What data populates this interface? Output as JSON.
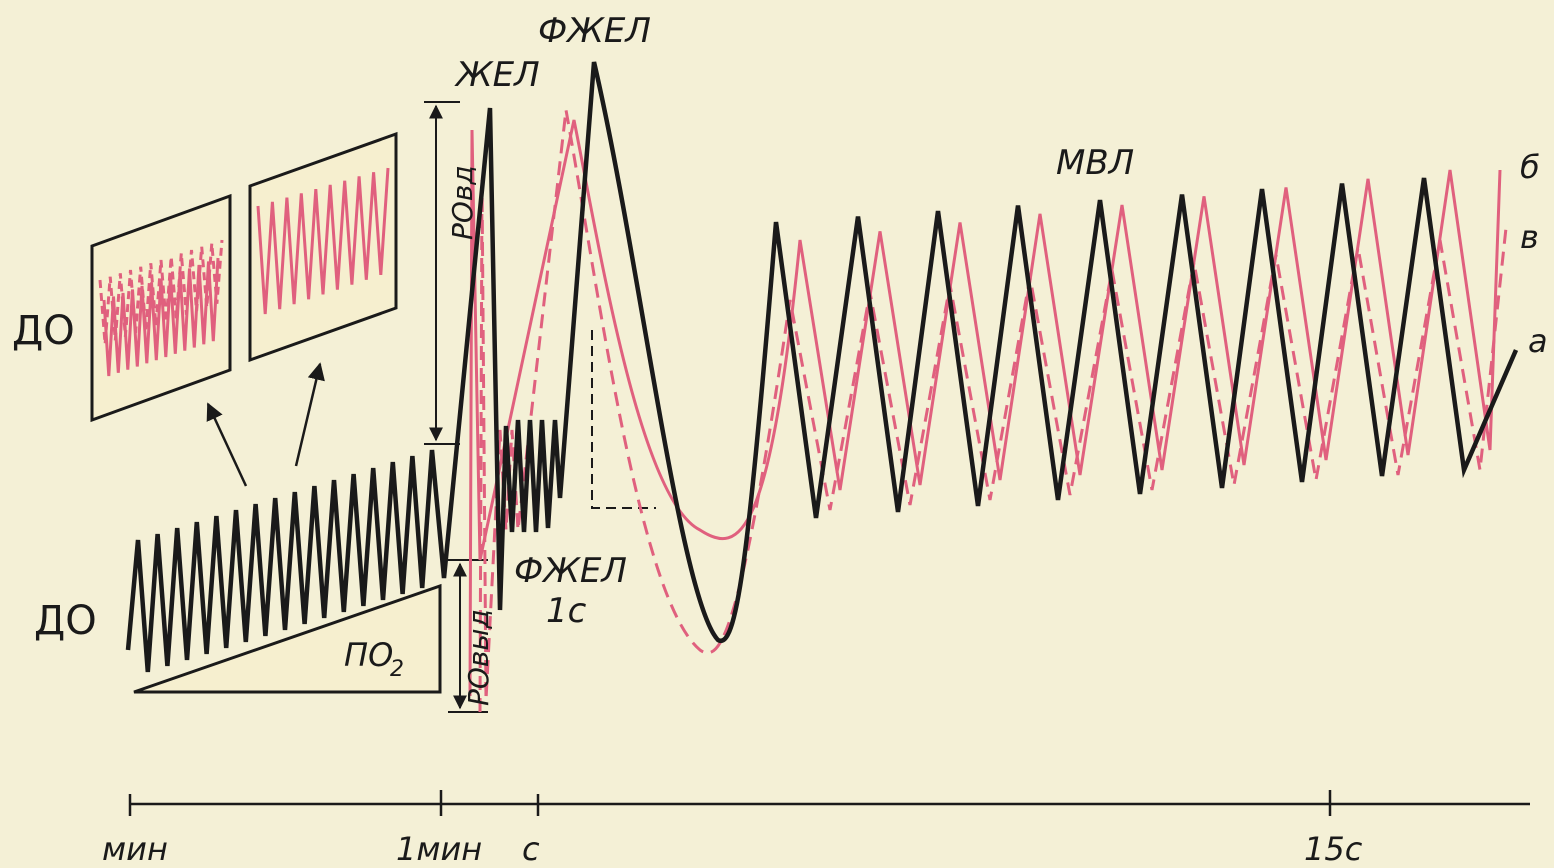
{
  "labels": {
    "do_top": "ДО",
    "do_bottom": "ДО",
    "zhel": "ЖЕЛ",
    "fzhel_top": "ФЖЕЛ",
    "fzhel_1s_line1": "ФЖЕЛ",
    "fzhel_1s_line2": "1с",
    "ro_vd": "РОвд",
    "ro_vyd": "РОвыд",
    "po2": "ПО",
    "po2_sub": "2",
    "mvl": "МВЛ",
    "curve_b": "б",
    "curve_v": "в",
    "curve_a": "а"
  },
  "axis": {
    "tick_min": "мин",
    "tick_1min": "1мин",
    "tick_s": "с",
    "tick_15s": "15с"
  },
  "colors": {
    "background": "#f4f0d6",
    "ink": "#1a1a1a",
    "pink": "#e0607e",
    "inset_fill": "#f6efcf"
  }
}
